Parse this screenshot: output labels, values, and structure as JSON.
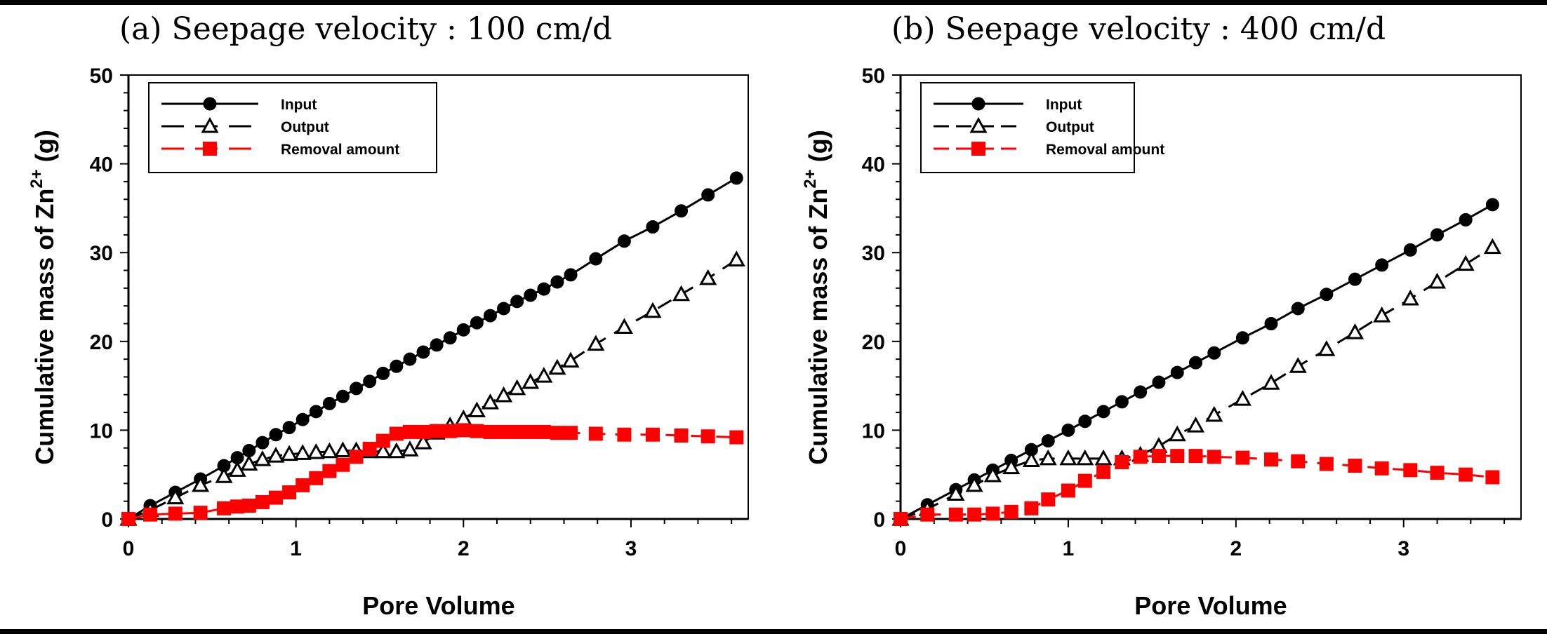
{
  "figure": {
    "panels": [
      {
        "title": "(a) Seepage velocity : 100 cm/d",
        "xlabel": "Pore Volume",
        "ylabel": "Cumulative mass of Zn",
        "ylabel_superscript": "2+",
        "ylabel_unit": "(g)"
      },
      {
        "title": "(b) Seepage velocity : 400 cm/d",
        "xlabel": "Pore Volume",
        "ylabel": "Cumulative mass of Zn",
        "ylabel_superscript": "2+",
        "ylabel_unit": "(g)"
      }
    ]
  },
  "colors": {
    "input": "#000000",
    "output": "#000000",
    "removal": "#ff0000"
  },
  "chart_data": [
    {
      "type": "line",
      "title": "(a) Seepage velocity : 100 cm/d",
      "xlabel": "Pore Volume",
      "ylabel": "Cumulative mass of Zn2+ (g)",
      "xlim": [
        0,
        3.7
      ],
      "ylim": [
        0,
        50
      ],
      "xticks": [
        "0",
        "1",
        "2",
        "3"
      ],
      "yticks": [
        "0",
        "10",
        "20",
        "30",
        "40",
        "50"
      ],
      "grid": false,
      "legend_position": "top-left",
      "legend": [
        "Input",
        "Output",
        "Removal amount"
      ],
      "series": [
        {
          "name": "Input",
          "marker": "filled-circle",
          "line": "solid",
          "x": [
            0,
            0.13,
            0.28,
            0.43,
            0.57,
            0.65,
            0.72,
            0.8,
            0.88,
            0.96,
            1.04,
            1.12,
            1.2,
            1.28,
            1.36,
            1.44,
            1.52,
            1.6,
            1.68,
            1.76,
            1.84,
            1.92,
            2.0,
            2.08,
            2.16,
            2.24,
            2.32,
            2.4,
            2.48,
            2.56,
            2.64,
            2.79,
            2.96,
            3.13,
            3.3,
            3.46,
            3.63
          ],
          "y": [
            0,
            1.5,
            3.0,
            4.5,
            6.0,
            6.9,
            7.7,
            8.6,
            9.5,
            10.3,
            11.2,
            12.1,
            13.0,
            13.8,
            14.7,
            15.5,
            16.4,
            17.2,
            18.0,
            18.8,
            19.6,
            20.4,
            21.3,
            22.1,
            22.9,
            23.7,
            24.5,
            25.2,
            25.9,
            26.7,
            27.5,
            29.3,
            31.3,
            32.9,
            34.7,
            36.5,
            38.4
          ]
        },
        {
          "name": "Output",
          "marker": "open-triangle",
          "line": "dashed",
          "x": [
            0,
            0.13,
            0.28,
            0.43,
            0.57,
            0.65,
            0.72,
            0.8,
            0.88,
            0.96,
            1.04,
            1.12,
            1.2,
            1.28,
            1.36,
            1.44,
            1.52,
            1.6,
            1.68,
            1.76,
            1.84,
            1.92,
            2.0,
            2.08,
            2.16,
            2.24,
            2.32,
            2.4,
            2.48,
            2.56,
            2.64,
            2.79,
            2.96,
            3.13,
            3.3,
            3.46,
            3.63
          ],
          "y": [
            0,
            1.0,
            2.4,
            3.8,
            4.8,
            5.5,
            6.2,
            6.7,
            7.1,
            7.3,
            7.4,
            7.5,
            7.6,
            7.7,
            7.7,
            7.6,
            7.6,
            7.6,
            7.8,
            8.6,
            9.7,
            10.5,
            11.3,
            12.2,
            13.1,
            13.9,
            14.7,
            15.4,
            16.1,
            17.0,
            17.8,
            19.7,
            21.6,
            23.4,
            25.3,
            27.1,
            29.2
          ]
        },
        {
          "name": "Removal amount",
          "marker": "filled-square",
          "line": "dashed",
          "x": [
            0,
            0.13,
            0.28,
            0.43,
            0.57,
            0.65,
            0.72,
            0.8,
            0.88,
            0.96,
            1.04,
            1.12,
            1.2,
            1.28,
            1.36,
            1.44,
            1.52,
            1.6,
            1.68,
            1.76,
            1.84,
            1.92,
            2.0,
            2.08,
            2.16,
            2.24,
            2.32,
            2.4,
            2.48,
            2.56,
            2.64,
            2.79,
            2.96,
            3.13,
            3.3,
            3.46,
            3.63
          ],
          "y": [
            0,
            0.5,
            0.6,
            0.7,
            1.2,
            1.4,
            1.5,
            1.9,
            2.4,
            3.0,
            3.8,
            4.6,
            5.4,
            6.1,
            7.0,
            7.9,
            8.8,
            9.6,
            9.8,
            9.8,
            9.9,
            9.9,
            10.0,
            9.9,
            9.8,
            9.8,
            9.8,
            9.8,
            9.8,
            9.7,
            9.7,
            9.6,
            9.5,
            9.5,
            9.4,
            9.3,
            9.2
          ]
        }
      ]
    },
    {
      "type": "line",
      "title": "(b) Seepage velocity : 400 cm/d",
      "xlabel": "Pore Volume",
      "ylabel": "Cumulative mass of Zn2+ (g)",
      "xlim": [
        0,
        3.7
      ],
      "ylim": [
        0,
        50
      ],
      "xticks": [
        "0",
        "1",
        "2",
        "3"
      ],
      "yticks": [
        "0",
        "10",
        "20",
        "30",
        "40",
        "50"
      ],
      "grid": false,
      "legend_position": "top-left",
      "legend": [
        "Input",
        "Output",
        "Removal amount"
      ],
      "series": [
        {
          "name": "Input",
          "marker": "filled-circle",
          "line": "solid",
          "x": [
            0,
            0.16,
            0.33,
            0.44,
            0.55,
            0.66,
            0.78,
            0.88,
            1.0,
            1.1,
            1.21,
            1.32,
            1.43,
            1.54,
            1.65,
            1.76,
            1.87,
            2.04,
            2.21,
            2.37,
            2.54,
            2.71,
            2.87,
            3.04,
            3.2,
            3.37,
            3.53
          ],
          "y": [
            0,
            1.6,
            3.3,
            4.4,
            5.5,
            6.6,
            7.8,
            8.8,
            10.0,
            11.0,
            12.1,
            13.2,
            14.3,
            15.4,
            16.5,
            17.6,
            18.7,
            20.4,
            22.0,
            23.7,
            25.3,
            27.0,
            28.6,
            30.3,
            32.0,
            33.7,
            35.4
          ]
        },
        {
          "name": "Output",
          "marker": "open-triangle",
          "line": "dashed",
          "x": [
            0,
            0.16,
            0.33,
            0.44,
            0.55,
            0.66,
            0.78,
            0.88,
            1.0,
            1.1,
            1.21,
            1.32,
            1.43,
            1.54,
            1.65,
            1.76,
            1.87,
            2.04,
            2.21,
            2.37,
            2.54,
            2.71,
            2.87,
            3.04,
            3.2,
            3.37,
            3.53
          ],
          "y": [
            0,
            1.1,
            2.8,
            3.8,
            4.9,
            5.8,
            6.6,
            6.8,
            6.8,
            6.8,
            6.8,
            6.8,
            7.2,
            8.2,
            9.5,
            10.5,
            11.7,
            13.5,
            15.3,
            17.2,
            19.1,
            21.0,
            22.9,
            24.8,
            26.7,
            28.7,
            30.6
          ]
        },
        {
          "name": "Removal amount",
          "marker": "filled-square",
          "line": "dashed",
          "x": [
            0,
            0.16,
            0.33,
            0.44,
            0.55,
            0.66,
            0.78,
            0.88,
            1.0,
            1.1,
            1.21,
            1.32,
            1.43,
            1.54,
            1.65,
            1.76,
            1.87,
            2.04,
            2.21,
            2.37,
            2.54,
            2.71,
            2.87,
            3.04,
            3.2,
            3.37,
            3.53
          ],
          "y": [
            0,
            0.5,
            0.5,
            0.5,
            0.6,
            0.8,
            1.2,
            2.2,
            3.2,
            4.3,
            5.3,
            6.4,
            7.0,
            7.1,
            7.1,
            7.1,
            7.0,
            6.9,
            6.7,
            6.5,
            6.2,
            6.0,
            5.7,
            5.5,
            5.2,
            5.0,
            4.7
          ]
        }
      ]
    }
  ]
}
